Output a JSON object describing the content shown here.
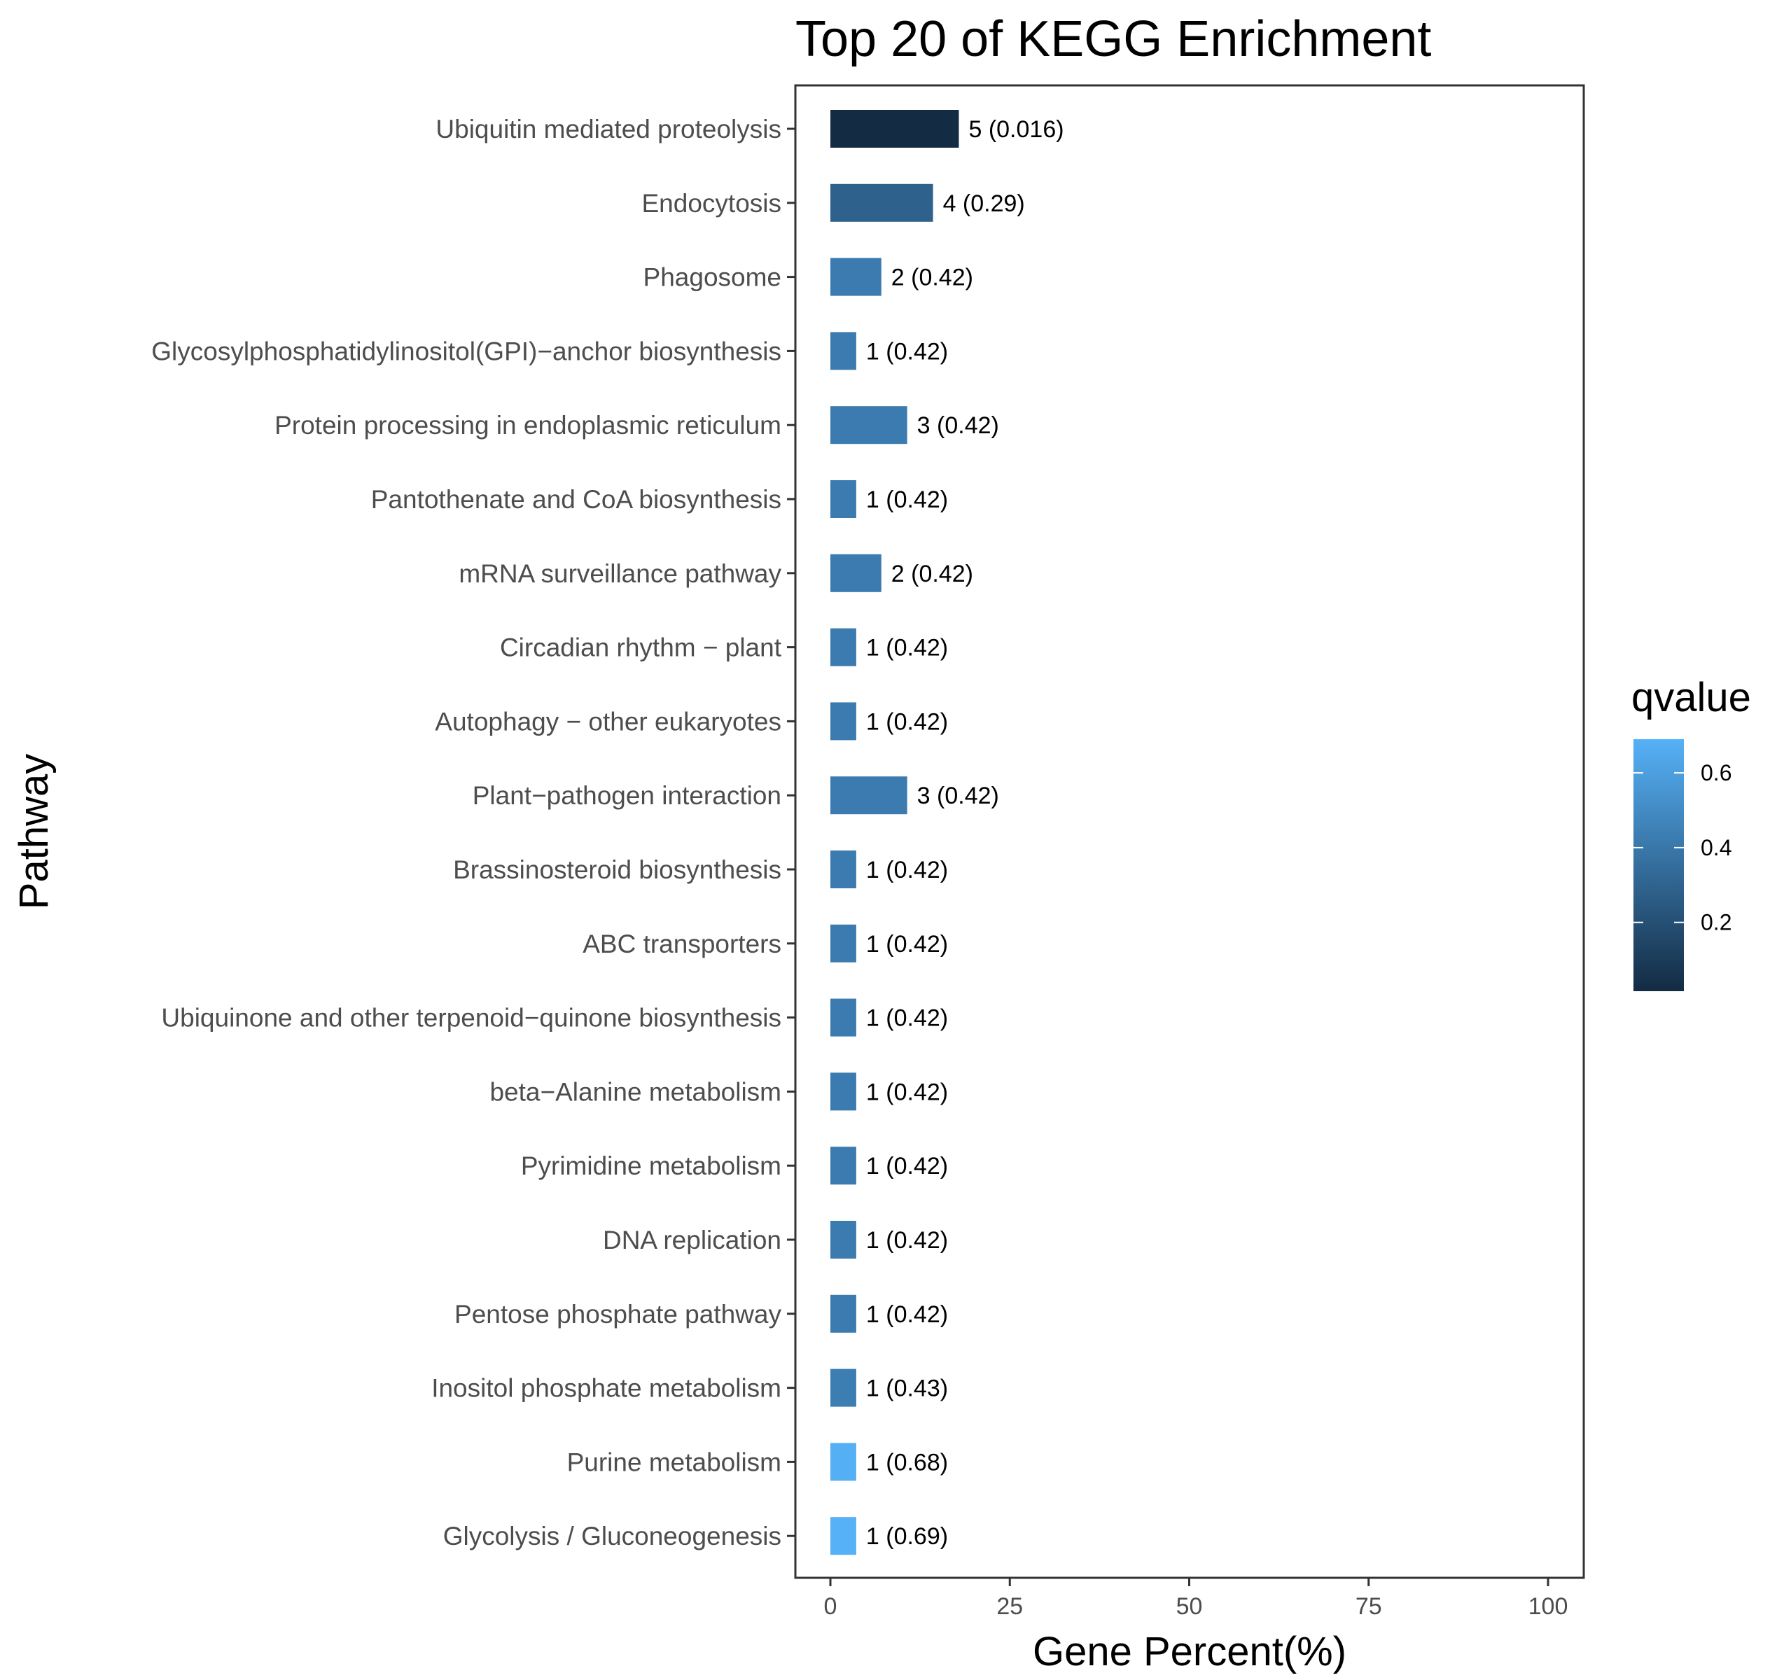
{
  "chart_data": {
    "type": "bar",
    "orientation": "horizontal",
    "title": "Top 20 of KEGG Enrichment",
    "xlabel": "Gene Percent(%)",
    "ylabel": "Pathway",
    "xlim": [
      0,
      100
    ],
    "xticks": [
      0,
      25,
      50,
      75,
      100
    ],
    "grid": false,
    "categories": [
      "Ubiquitin mediated proteolysis",
      "Endocytosis",
      "Phagosome",
      "Glycosylphosphatidylinositol(GPI)−anchor biosynthesis",
      "Protein processing in endoplasmic reticulum",
      "Pantothenate and CoA biosynthesis",
      "mRNA surveillance pathway",
      "Circadian rhythm − plant",
      "Autophagy − other eukaryotes",
      "Plant−pathogen interaction",
      "Brassinosteroid biosynthesis",
      "ABC transporters",
      "Ubiquinone and other terpenoid−quinone biosynthesis",
      "beta−Alanine metabolism",
      "Pyrimidine metabolism",
      "DNA replication",
      "Pentose phosphate pathway",
      "Inositol phosphate metabolism",
      "Purine metabolism",
      "Glycolysis / Gluconeogenesis"
    ],
    "values": [
      17.9,
      14.3,
      7.1,
      3.6,
      10.7,
      3.6,
      7.1,
      3.6,
      3.6,
      10.7,
      3.6,
      3.6,
      3.6,
      3.6,
      3.6,
      3.6,
      3.6,
      3.6,
      3.6,
      3.6
    ],
    "qvalues": [
      0.016,
      0.29,
      0.42,
      0.42,
      0.42,
      0.42,
      0.42,
      0.42,
      0.42,
      0.42,
      0.42,
      0.42,
      0.42,
      0.42,
      0.42,
      0.42,
      0.42,
      0.43,
      0.68,
      0.69
    ],
    "bar_labels": [
      "5 (0.016)",
      "4 (0.29)",
      "2 (0.42)",
      "1 (0.42)",
      "3 (0.42)",
      "1 (0.42)",
      "2 (0.42)",
      "1 (0.42)",
      "1 (0.42)",
      "3 (0.42)",
      "1 (0.42)",
      "1 (0.42)",
      "1 (0.42)",
      "1 (0.42)",
      "1 (0.42)",
      "1 (0.42)",
      "1 (0.42)",
      "1 (0.43)",
      "1 (0.68)",
      "1 (0.69)"
    ],
    "legend": {
      "title": "qvalue",
      "placement": "right",
      "range": [
        0.016,
        0.69
      ],
      "ticks": [
        0.2,
        0.4,
        0.6
      ],
      "tick_labels": [
        "0.2",
        "0.4",
        "0.6"
      ],
      "color_low": "#132B43",
      "color_high": "#56B1F7"
    }
  }
}
